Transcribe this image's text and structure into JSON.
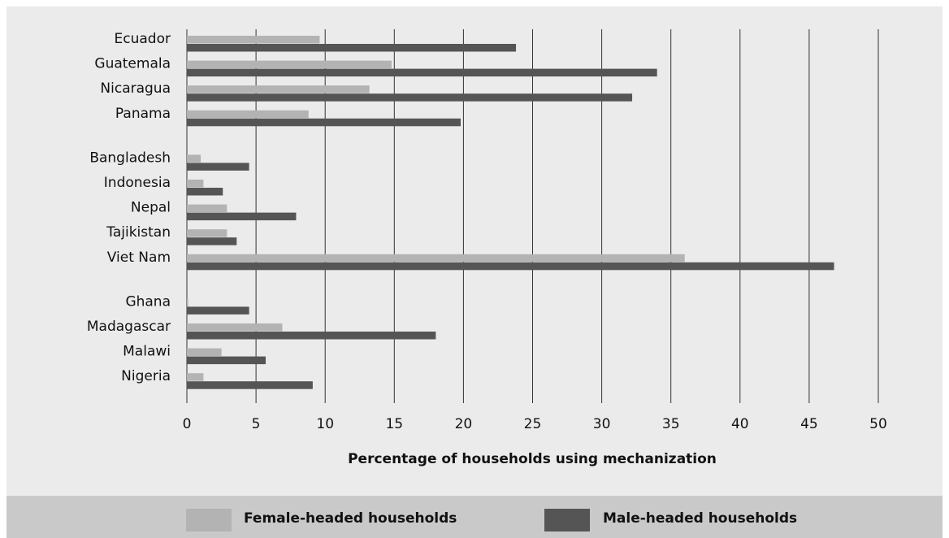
{
  "chart_data": {
    "type": "bar",
    "orientation": "horizontal",
    "categories": [
      "Ecuador",
      "Guatemala",
      "Nicaragua",
      "Panama",
      "Bangladesh",
      "Indonesia",
      "Nepal",
      "Tajikistan",
      "Viet Nam",
      "Ghana",
      "Madagascar",
      "Malawi",
      "Nigeria"
    ],
    "groups": [
      [
        "Ecuador",
        "Guatemala",
        "Nicaragua",
        "Panama"
      ],
      [
        "Bangladesh",
        "Indonesia",
        "Nepal",
        "Tajikistan",
        "Viet Nam"
      ],
      [
        "Ghana",
        "Madagascar",
        "Malawi",
        "Nigeria"
      ]
    ],
    "series": [
      {
        "name": "Female-headed households",
        "color": "#b3b3b3",
        "values": [
          9.6,
          14.8,
          13.2,
          8.8,
          1.0,
          1.2,
          2.9,
          2.9,
          36.0,
          0.1,
          6.9,
          2.5,
          1.2
        ]
      },
      {
        "name": "Male-headed households",
        "color": "#555555",
        "values": [
          23.8,
          34.0,
          32.2,
          19.8,
          4.5,
          2.6,
          7.9,
          3.6,
          46.8,
          4.5,
          18.0,
          5.7,
          9.1
        ]
      }
    ],
    "title": "",
    "xlabel": "Percentage of households using mechanization",
    "ylabel": "",
    "xlim": [
      0,
      50
    ],
    "xticks": [
      "0",
      "5",
      "10",
      "15",
      "20",
      "25",
      "30",
      "35",
      "40",
      "45",
      "50"
    ],
    "grid": "vertical",
    "legend_position": "bottom"
  },
  "legend": {
    "female_label": "Female-headed households",
    "male_label": "Male-headed households"
  }
}
